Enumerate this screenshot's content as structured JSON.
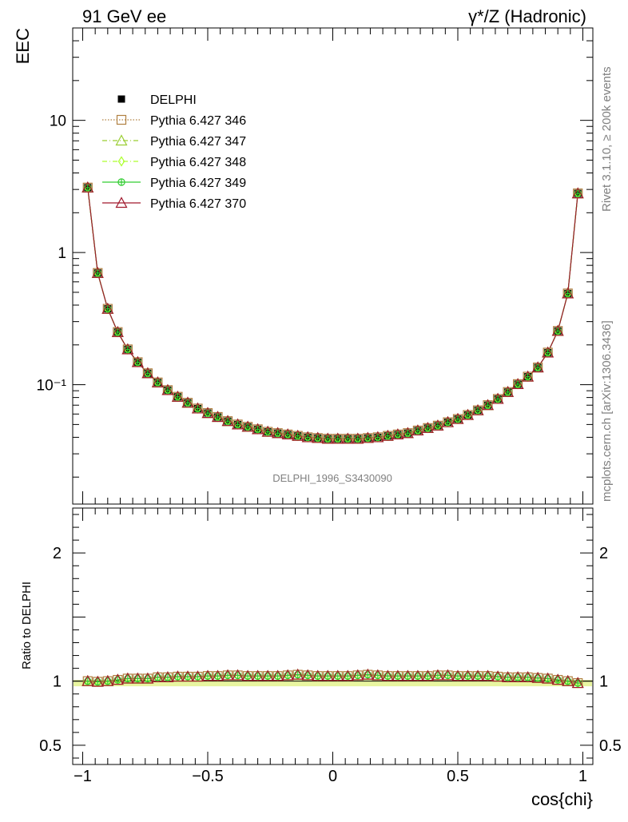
{
  "header": {
    "left": "91 GeV ee",
    "right": "γ*/Z (Hadronic)"
  },
  "side_labels": {
    "rivet": "Rivet 3.1.10, ≥ 200k events",
    "mcplots": "mcplots.cern.ch [arXiv:1306.3436]"
  },
  "analysis_label": "DELPHI_1996_S3430090",
  "chart_data": [
    {
      "type": "scatter",
      "panel": "main",
      "title": "",
      "ylabel": "EEC",
      "xlabel": "",
      "yscale": "log",
      "ylim": [
        0.0125,
        50
      ],
      "xlim": [
        -1.04,
        1.04
      ],
      "yticks": [
        0.1,
        1,
        10
      ],
      "yticklabels": [
        "10⁻¹",
        "1",
        "10"
      ],
      "legend_position": "top-left",
      "x": [
        -0.98,
        -0.94,
        -0.9,
        -0.86,
        -0.82,
        -0.78,
        -0.74,
        -0.7,
        -0.66,
        -0.62,
        -0.58,
        -0.54,
        -0.5,
        -0.46,
        -0.42,
        -0.38,
        -0.34,
        -0.3,
        -0.26,
        -0.22,
        -0.18,
        -0.14,
        -0.1,
        -0.06,
        -0.02,
        0.02,
        0.06,
        0.1,
        0.14,
        0.18,
        0.22,
        0.26,
        0.3,
        0.34,
        0.38,
        0.42,
        0.46,
        0.5,
        0.54,
        0.58,
        0.62,
        0.66,
        0.7,
        0.74,
        0.78,
        0.82,
        0.86,
        0.9,
        0.94,
        0.98
      ],
      "series": [
        {
          "name": "DELPHI",
          "color": "#000000",
          "marker": "filled-square",
          "values": [
            3.1,
            0.7,
            0.375,
            0.25,
            0.185,
            0.148,
            0.122,
            0.104,
            0.091,
            0.081,
            0.073,
            0.066,
            0.061,
            0.057,
            0.053,
            0.05,
            0.048,
            0.046,
            0.044,
            0.043,
            0.042,
            0.041,
            0.04,
            0.0395,
            0.039,
            0.039,
            0.039,
            0.039,
            0.0395,
            0.04,
            0.041,
            0.042,
            0.043,
            0.045,
            0.047,
            0.049,
            0.052,
            0.055,
            0.059,
            0.064,
            0.07,
            0.078,
            0.088,
            0.101,
            0.115,
            0.135,
            0.175,
            0.255,
            0.49,
            2.8
          ]
        },
        {
          "name": "Pythia 6.427 346",
          "color": "#b08040",
          "marker": "open-square",
          "line": "dotted",
          "values": [
            3.1,
            0.7,
            0.375,
            0.25,
            0.185,
            0.148,
            0.122,
            0.104,
            0.091,
            0.081,
            0.073,
            0.066,
            0.061,
            0.057,
            0.053,
            0.05,
            0.048,
            0.046,
            0.044,
            0.043,
            0.042,
            0.041,
            0.04,
            0.0395,
            0.039,
            0.039,
            0.039,
            0.039,
            0.0395,
            0.04,
            0.041,
            0.042,
            0.043,
            0.045,
            0.047,
            0.049,
            0.052,
            0.055,
            0.059,
            0.064,
            0.07,
            0.078,
            0.088,
            0.101,
            0.115,
            0.135,
            0.175,
            0.255,
            0.49,
            2.8
          ]
        },
        {
          "name": "Pythia 6.427 347",
          "color": "#9acd32",
          "marker": "open-triangle",
          "line": "dashdot",
          "values": [
            3.1,
            0.7,
            0.375,
            0.25,
            0.185,
            0.148,
            0.122,
            0.104,
            0.091,
            0.081,
            0.073,
            0.066,
            0.061,
            0.057,
            0.053,
            0.05,
            0.048,
            0.046,
            0.044,
            0.043,
            0.042,
            0.041,
            0.04,
            0.0395,
            0.039,
            0.039,
            0.039,
            0.039,
            0.0395,
            0.04,
            0.041,
            0.042,
            0.043,
            0.045,
            0.047,
            0.049,
            0.052,
            0.055,
            0.059,
            0.064,
            0.07,
            0.078,
            0.088,
            0.101,
            0.115,
            0.135,
            0.175,
            0.255,
            0.49,
            2.8
          ]
        },
        {
          "name": "Pythia 6.427 348",
          "color": "#adff2f",
          "marker": "open-diamond",
          "line": "dashdot",
          "values": [
            3.1,
            0.7,
            0.375,
            0.25,
            0.185,
            0.148,
            0.122,
            0.104,
            0.091,
            0.081,
            0.073,
            0.066,
            0.061,
            0.057,
            0.053,
            0.05,
            0.048,
            0.046,
            0.044,
            0.043,
            0.042,
            0.041,
            0.04,
            0.0395,
            0.039,
            0.039,
            0.039,
            0.039,
            0.0395,
            0.04,
            0.041,
            0.042,
            0.043,
            0.045,
            0.047,
            0.049,
            0.052,
            0.055,
            0.059,
            0.064,
            0.07,
            0.078,
            0.088,
            0.101,
            0.115,
            0.135,
            0.175,
            0.255,
            0.49,
            2.8
          ]
        },
        {
          "name": "Pythia 6.427 349",
          "color": "#32cd32",
          "marker": "open-cross-circle",
          "line": "solid",
          "values": [
            3.1,
            0.7,
            0.375,
            0.25,
            0.185,
            0.148,
            0.122,
            0.104,
            0.091,
            0.081,
            0.073,
            0.066,
            0.061,
            0.057,
            0.053,
            0.05,
            0.048,
            0.046,
            0.044,
            0.043,
            0.042,
            0.041,
            0.04,
            0.0395,
            0.039,
            0.039,
            0.039,
            0.039,
            0.0395,
            0.04,
            0.041,
            0.042,
            0.043,
            0.045,
            0.047,
            0.049,
            0.052,
            0.055,
            0.059,
            0.064,
            0.07,
            0.078,
            0.088,
            0.101,
            0.115,
            0.135,
            0.175,
            0.255,
            0.49,
            2.8
          ]
        },
        {
          "name": "Pythia 6.427 370",
          "color": "#a0182c",
          "marker": "open-triangle",
          "line": "solid",
          "values": [
            3.1,
            0.7,
            0.375,
            0.25,
            0.185,
            0.148,
            0.122,
            0.104,
            0.091,
            0.081,
            0.073,
            0.066,
            0.061,
            0.057,
            0.053,
            0.05,
            0.048,
            0.046,
            0.044,
            0.043,
            0.042,
            0.041,
            0.04,
            0.0395,
            0.039,
            0.039,
            0.039,
            0.039,
            0.0395,
            0.04,
            0.041,
            0.042,
            0.043,
            0.045,
            0.047,
            0.049,
            0.052,
            0.055,
            0.059,
            0.064,
            0.07,
            0.078,
            0.088,
            0.101,
            0.115,
            0.135,
            0.175,
            0.255,
            0.49,
            2.8
          ]
        }
      ]
    },
    {
      "type": "line",
      "panel": "ratio",
      "title": "",
      "ylabel": "Ratio to DELPHI",
      "xlabel": "cos{chi}",
      "ylim": [
        0.35,
        2.35
      ],
      "xlim": [
        -1.04,
        1.04
      ],
      "yticks": [
        0.5,
        1,
        2
      ],
      "yticklabels": [
        "0.5",
        "1",
        "2"
      ],
      "xticks": [
        -1,
        -0.5,
        0,
        0.5,
        1
      ],
      "xticklabels": [
        "−1",
        "−0.5",
        "0",
        "0.5",
        "1"
      ],
      "band": {
        "low": 0.96,
        "high": 1.01,
        "color": "#e8f5a0"
      },
      "x": [
        -0.98,
        -0.94,
        -0.9,
        -0.86,
        -0.82,
        -0.78,
        -0.74,
        -0.7,
        -0.66,
        -0.62,
        -0.58,
        -0.54,
        -0.5,
        -0.46,
        -0.42,
        -0.38,
        -0.34,
        -0.3,
        -0.26,
        -0.22,
        -0.18,
        -0.14,
        -0.1,
        -0.06,
        -0.02,
        0.02,
        0.06,
        0.1,
        0.14,
        0.18,
        0.22,
        0.26,
        0.3,
        0.34,
        0.38,
        0.42,
        0.46,
        0.5,
        0.54,
        0.58,
        0.62,
        0.66,
        0.7,
        0.74,
        0.78,
        0.82,
        0.86,
        0.9,
        0.94,
        0.98
      ],
      "series": [
        {
          "name": "Pythia 6.427 346",
          "color": "#b08040",
          "marker": "open-square",
          "values": [
            1.0,
            0.995,
            1.0,
            1.01,
            1.02,
            1.02,
            1.02,
            1.03,
            1.03,
            1.035,
            1.035,
            1.035,
            1.04,
            1.04,
            1.045,
            1.045,
            1.04,
            1.04,
            1.04,
            1.04,
            1.045,
            1.05,
            1.045,
            1.04,
            1.04,
            1.04,
            1.04,
            1.045,
            1.05,
            1.045,
            1.04,
            1.04,
            1.04,
            1.04,
            1.04,
            1.045,
            1.045,
            1.04,
            1.04,
            1.04,
            1.04,
            1.035,
            1.03,
            1.03,
            1.03,
            1.025,
            1.02,
            1.01,
            1.0,
            0.985
          ]
        },
        {
          "name": "Pythia 6.427 347",
          "color": "#9acd32",
          "marker": "open-triangle",
          "values": [
            1.0,
            0.995,
            1.0,
            1.01,
            1.02,
            1.02,
            1.02,
            1.03,
            1.03,
            1.035,
            1.035,
            1.035,
            1.04,
            1.04,
            1.045,
            1.045,
            1.04,
            1.04,
            1.04,
            1.04,
            1.045,
            1.05,
            1.045,
            1.04,
            1.04,
            1.04,
            1.04,
            1.045,
            1.05,
            1.045,
            1.04,
            1.04,
            1.04,
            1.04,
            1.04,
            1.045,
            1.045,
            1.04,
            1.04,
            1.04,
            1.04,
            1.035,
            1.03,
            1.03,
            1.03,
            1.025,
            1.02,
            1.01,
            1.0,
            0.985
          ]
        },
        {
          "name": "Pythia 6.427 348",
          "color": "#adff2f",
          "marker": "open-diamond",
          "values": [
            1.0,
            0.995,
            1.0,
            1.01,
            1.02,
            1.02,
            1.02,
            1.03,
            1.03,
            1.035,
            1.035,
            1.035,
            1.04,
            1.04,
            1.045,
            1.045,
            1.04,
            1.04,
            1.04,
            1.04,
            1.045,
            1.05,
            1.045,
            1.04,
            1.04,
            1.04,
            1.04,
            1.045,
            1.05,
            1.045,
            1.04,
            1.04,
            1.04,
            1.04,
            1.04,
            1.045,
            1.045,
            1.04,
            1.04,
            1.04,
            1.04,
            1.035,
            1.03,
            1.03,
            1.03,
            1.025,
            1.02,
            1.01,
            1.0,
            0.985
          ]
        },
        {
          "name": "Pythia 6.427 349",
          "color": "#32cd32",
          "marker": "open-cross-circle",
          "values": [
            1.0,
            0.995,
            1.0,
            1.01,
            1.02,
            1.02,
            1.02,
            1.03,
            1.03,
            1.035,
            1.035,
            1.035,
            1.04,
            1.04,
            1.045,
            1.045,
            1.04,
            1.04,
            1.04,
            1.04,
            1.045,
            1.05,
            1.045,
            1.04,
            1.04,
            1.04,
            1.04,
            1.045,
            1.05,
            1.045,
            1.04,
            1.04,
            1.04,
            1.04,
            1.04,
            1.045,
            1.045,
            1.04,
            1.04,
            1.04,
            1.04,
            1.035,
            1.03,
            1.03,
            1.03,
            1.025,
            1.02,
            1.01,
            1.0,
            0.985
          ]
        },
        {
          "name": "Pythia 6.427 370",
          "color": "#a0182c",
          "marker": "open-triangle",
          "values": [
            1.0,
            0.995,
            1.0,
            1.01,
            1.02,
            1.02,
            1.02,
            1.03,
            1.03,
            1.035,
            1.035,
            1.035,
            1.04,
            1.04,
            1.045,
            1.045,
            1.04,
            1.04,
            1.04,
            1.04,
            1.045,
            1.05,
            1.045,
            1.04,
            1.04,
            1.04,
            1.04,
            1.045,
            1.05,
            1.045,
            1.04,
            1.04,
            1.04,
            1.04,
            1.04,
            1.045,
            1.045,
            1.04,
            1.04,
            1.04,
            1.04,
            1.035,
            1.03,
            1.03,
            1.03,
            1.025,
            1.02,
            1.01,
            1.0,
            0.985
          ]
        }
      ]
    }
  ]
}
